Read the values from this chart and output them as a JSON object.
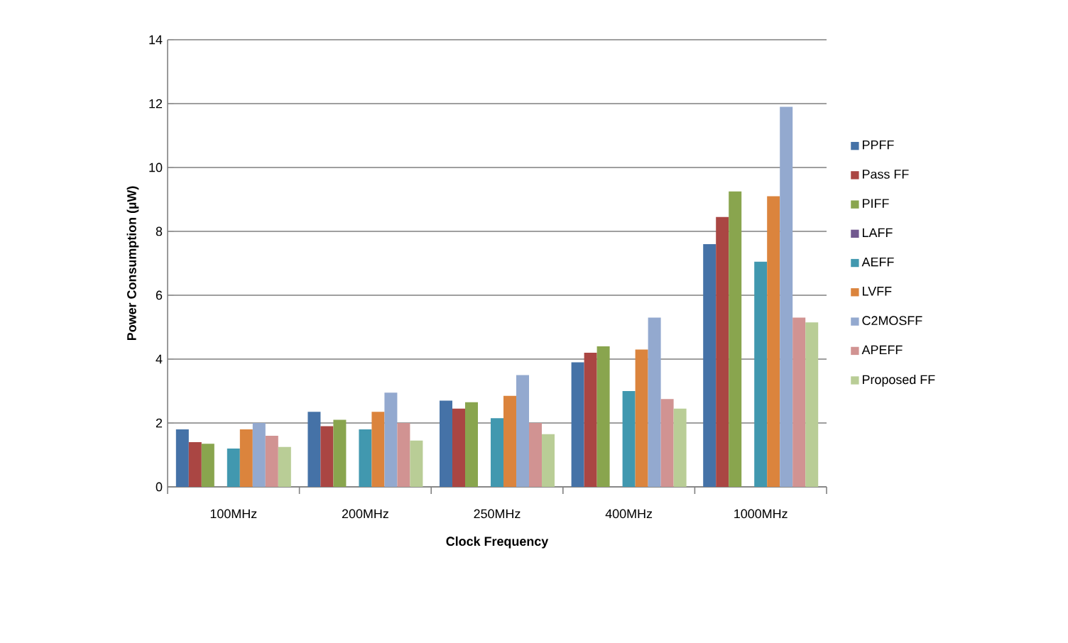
{
  "chart_data": {
    "type": "bar",
    "xlabel": "Clock Frequency",
    "ylabel": "Power Consumption (µW)",
    "categories": [
      "100MHz",
      "200MHz",
      "250MHz",
      "400MHz",
      "1000MHz"
    ],
    "series": [
      {
        "name": "PPFF",
        "color": "#4572a7",
        "values": [
          1.8,
          2.35,
          2.7,
          3.9,
          7.6
        ]
      },
      {
        "name": "Pass FF",
        "color": "#aa4643",
        "values": [
          1.4,
          1.9,
          2.45,
          4.2,
          8.45
        ]
      },
      {
        "name": "PIFF",
        "color": "#89a54e",
        "values": [
          1.35,
          2.1,
          2.65,
          4.4,
          9.25
        ]
      },
      {
        "name": "LAFF",
        "color": "#71588f",
        "values": [
          null,
          null,
          null,
          null,
          null
        ]
      },
      {
        "name": "AEFF",
        "color": "#4198af",
        "values": [
          1.2,
          1.8,
          2.15,
          3.0,
          7.05
        ]
      },
      {
        "name": "LVFF",
        "color": "#db843d",
        "values": [
          1.8,
          2.35,
          2.85,
          4.3,
          9.1
        ]
      },
      {
        "name": "C2MOSFF",
        "color": "#93a9cf",
        "values": [
          2.0,
          2.95,
          3.5,
          5.3,
          11.9
        ]
      },
      {
        "name": "APEFF",
        "color": "#d19392",
        "values": [
          1.6,
          2.0,
          2.0,
          2.75,
          5.3
        ]
      },
      {
        "name": "Proposed FF",
        "color": "#b9cd96",
        "values": [
          1.25,
          1.45,
          1.65,
          2.45,
          5.15
        ]
      }
    ],
    "ylim": [
      0,
      14
    ],
    "yticks": [
      0,
      2,
      4,
      6,
      8,
      10,
      12,
      14
    ],
    "grid": "y",
    "legend": "right"
  }
}
